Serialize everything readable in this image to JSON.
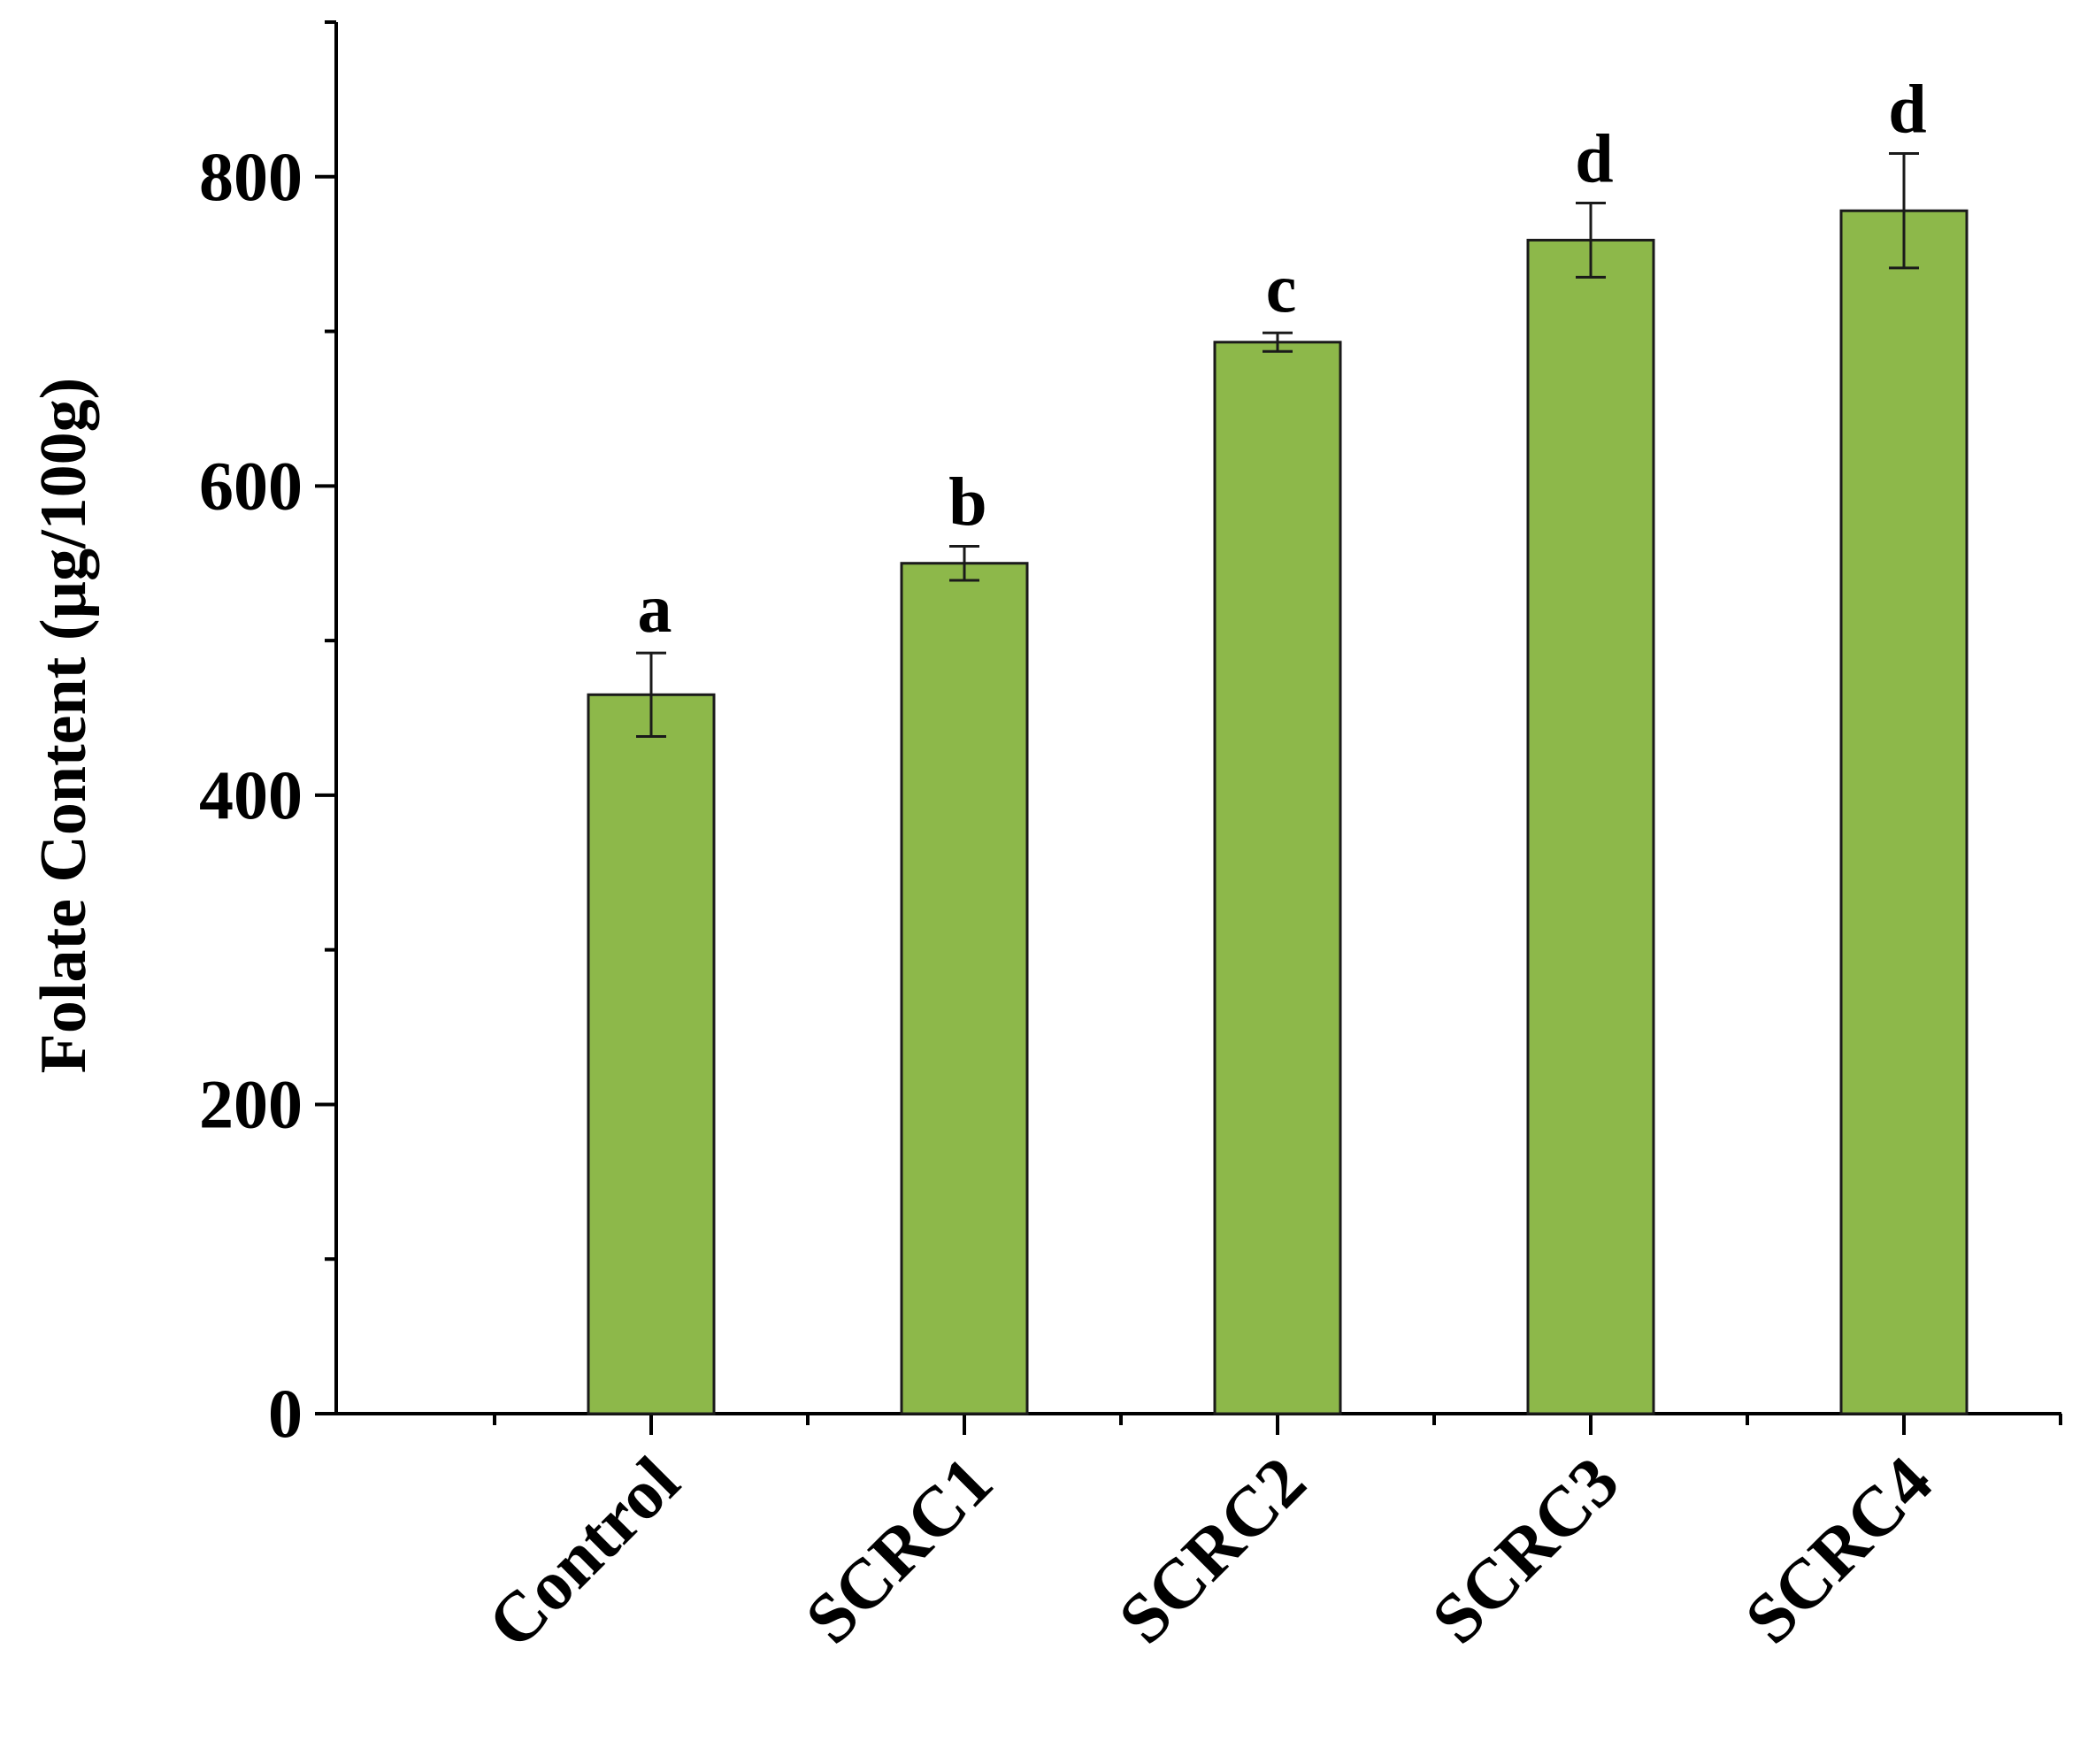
{
  "chart_data": {
    "type": "bar",
    "title": "",
    "xlabel": "",
    "ylabel": "Folate Content (µg/100g)",
    "categories": [
      "Control",
      "SCRC1",
      "SCRC2",
      "SCRC3",
      "SCRC4"
    ],
    "values": [
      465,
      550,
      693,
      759,
      778
    ],
    "errors": [
      27,
      11,
      6,
      24,
      37
    ],
    "significance_letters": [
      "a",
      "b",
      "c",
      "d",
      "d"
    ],
    "ylim": [
      0,
      900
    ],
    "yticks": [
      0,
      200,
      400,
      600,
      800
    ],
    "ytick_labels": [
      "0",
      "200",
      "400",
      "600",
      "800"
    ],
    "minor_ytick_step": 100,
    "grid": false,
    "legend": "none",
    "colors": {
      "bar_fill": "#8DB84A",
      "bar_stroke": "#1a1a1a",
      "axis": "#000000"
    }
  }
}
